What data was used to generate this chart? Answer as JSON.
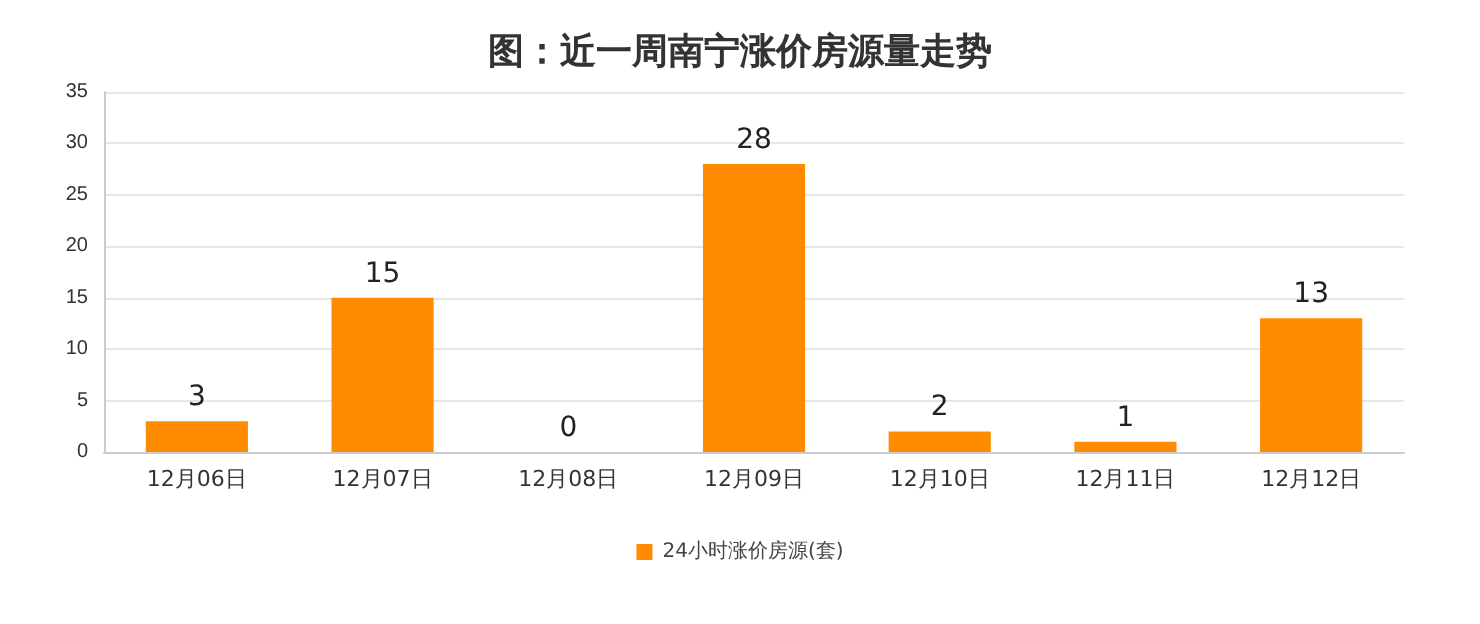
{
  "chart_data": {
    "type": "bar",
    "title": "图：近一周南宁涨价房源量走势",
    "categories": [
      "12月06日",
      "12月07日",
      "12月08日",
      "12月09日",
      "12月10日",
      "12月11日",
      "12月12日"
    ],
    "series": [
      {
        "name": "24小时涨价房源(套)",
        "color": "#ff8c00",
        "values": [
          3,
          15,
          0,
          28,
          2,
          1,
          13
        ]
      }
    ],
    "ylim": [
      0,
      35
    ],
    "yticks": [
      0,
      5,
      10,
      15,
      20,
      25,
      30,
      35
    ],
    "grid": "y",
    "legend": "bottom",
    "data_labels": true
  }
}
